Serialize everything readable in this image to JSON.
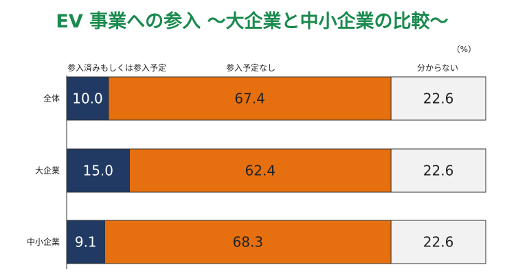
{
  "chart_data": {
    "type": "bar",
    "stacked": true,
    "orientation": "horizontal",
    "title": "EV 事業への参入 ～大企業と中小企業の比較～",
    "unit_label": "（%）",
    "categories": [
      "全体",
      "大企業",
      "中小企業"
    ],
    "series": [
      {
        "name": "参入済みもしくは参入予定",
        "values": [
          10.0,
          15.0,
          9.1
        ],
        "labels": [
          "10.0",
          "15.0",
          "9.1"
        ],
        "color": "#203a63",
        "text_color": "#ffffff"
      },
      {
        "name": "参入予定なし",
        "values": [
          67.4,
          62.4,
          68.3
        ],
        "labels": [
          "67.4",
          "62.4",
          "68.3"
        ],
        "color": "#e6700f",
        "text_color": "#222222"
      },
      {
        "name": "分からない",
        "values": [
          22.6,
          22.6,
          22.6
        ],
        "labels": [
          "22.6",
          "22.6",
          "22.6"
        ],
        "color": "#f2f2f2",
        "text_color": "#222222"
      }
    ],
    "xlim": [
      0,
      100
    ],
    "grid": false,
    "legend_position": "top"
  }
}
